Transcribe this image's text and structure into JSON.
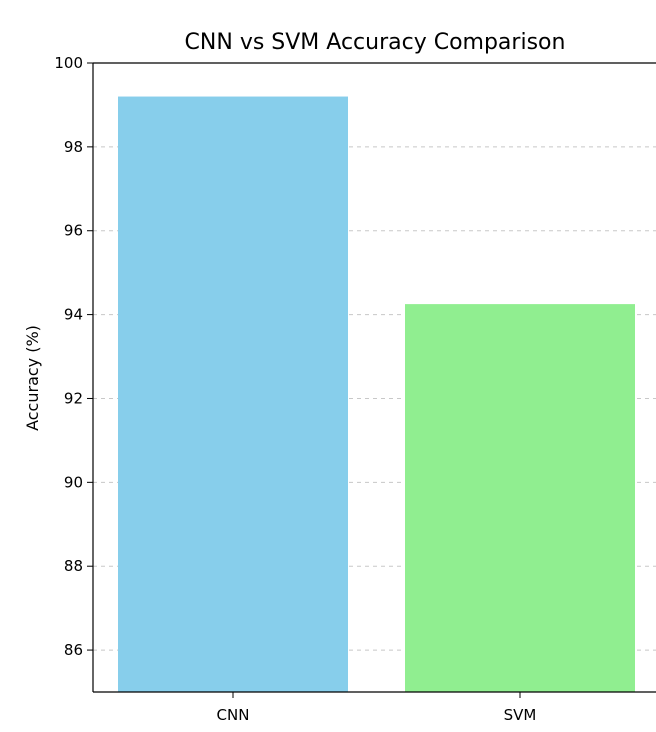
{
  "chart_data": {
    "type": "bar",
    "title": "CNN vs SVM Accuracy Comparison",
    "xlabel": "",
    "ylabel": "Accuracy (%)",
    "categories": [
      "CNN",
      "SVM"
    ],
    "values": [
      99.2,
      94.25
    ],
    "colors": [
      "#87ceeb",
      "#90ee90"
    ],
    "ylim": [
      85,
      100
    ],
    "yticks": [
      86,
      88,
      90,
      92,
      94,
      96,
      98,
      100
    ],
    "grid": {
      "axis": "y",
      "style": "dashed",
      "color": "#c8c8c8"
    }
  }
}
